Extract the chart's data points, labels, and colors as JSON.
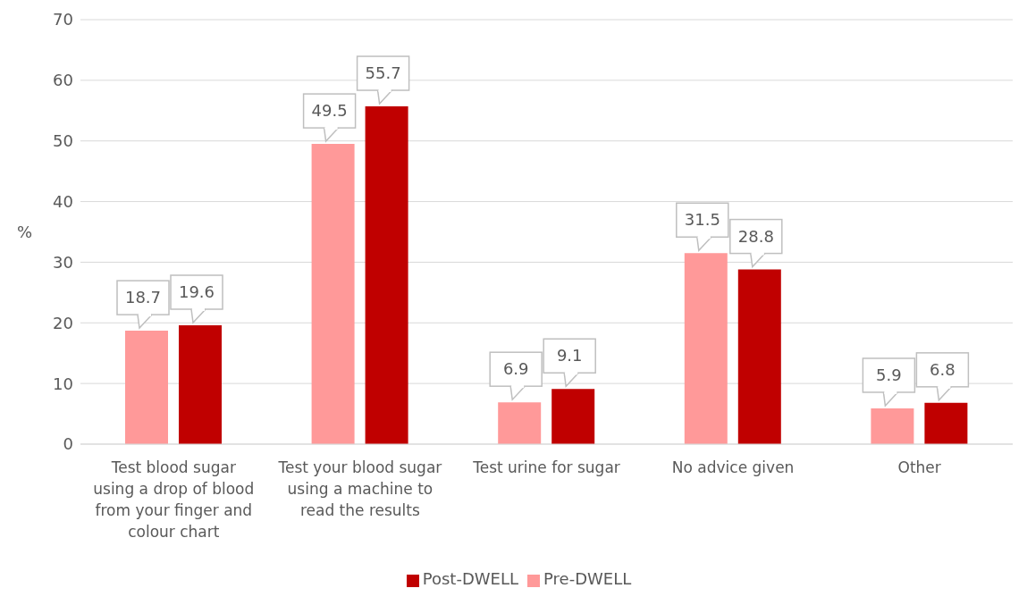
{
  "chart_data": {
    "type": "bar",
    "ylabel": "%",
    "categories": [
      "Test blood sugar using a drop of blood from your finger and colour chart",
      "Test your blood sugar using a machine to read the results",
      "Test urine for sugar",
      "No advice given",
      "Other"
    ],
    "series": [
      {
        "name": "Pre-DWELL",
        "color": "#ff9999",
        "values": [
          18.7,
          49.5,
          6.9,
          31.5,
          5.9
        ]
      },
      {
        "name": "Post-DWELL",
        "color": "#c00000",
        "values": [
          19.6,
          55.7,
          9.1,
          28.8,
          6.8
        ]
      }
    ],
    "ylim": [
      0,
      70
    ],
    "yticks": [
      0,
      10,
      20,
      30,
      40,
      50,
      60,
      70
    ],
    "grid": "y",
    "legend": "bottom",
    "data_labels": true
  }
}
